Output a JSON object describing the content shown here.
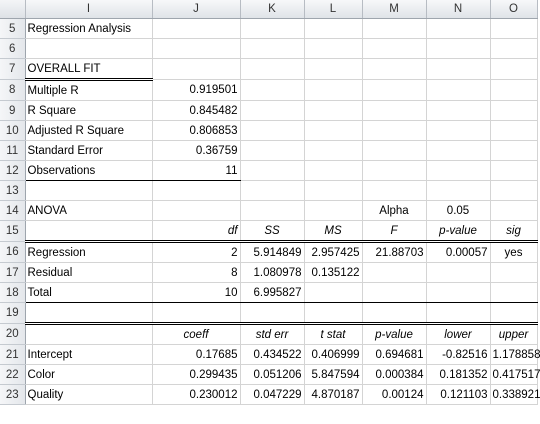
{
  "columns": [
    "I",
    "J",
    "K",
    "L",
    "M",
    "N",
    "O"
  ],
  "rows": [
    {
      "row": "5",
      "cells": [
        "Regression Analysis",
        "",
        "",
        "",
        "",
        "",
        ""
      ]
    },
    {
      "row": "6",
      "cells": [
        "",
        "",
        "",
        "",
        "",
        "",
        ""
      ]
    },
    {
      "row": "7",
      "cells": [
        "OVERALL FIT",
        "",
        "",
        "",
        "",
        "",
        ""
      ]
    },
    {
      "row": "8",
      "cells": [
        "Multiple R",
        "0.919501",
        "",
        "",
        "",
        "",
        ""
      ]
    },
    {
      "row": "9",
      "cells": [
        "R Square",
        "0.845482",
        "",
        "",
        "",
        "",
        ""
      ]
    },
    {
      "row": "10",
      "cells": [
        "Adjusted R Square",
        "0.806853",
        "",
        "",
        "",
        "",
        ""
      ]
    },
    {
      "row": "11",
      "cells": [
        "Standard Error",
        "0.36759",
        "",
        "",
        "",
        "",
        ""
      ]
    },
    {
      "row": "12",
      "cells": [
        "Observations",
        "11",
        "",
        "",
        "",
        "",
        ""
      ]
    },
    {
      "row": "13",
      "cells": [
        "",
        "",
        "",
        "",
        "",
        "",
        ""
      ]
    },
    {
      "row": "14",
      "cells": [
        "ANOVA",
        "",
        "",
        "",
        "Alpha",
        "0.05",
        ""
      ]
    },
    {
      "row": "15",
      "cells": [
        "",
        "df",
        "SS",
        "MS",
        "F",
        "p-value",
        "sig"
      ]
    },
    {
      "row": "16",
      "cells": [
        "Regression",
        "2",
        "5.914849",
        "2.957425",
        "21.88703",
        "0.00057",
        "yes"
      ]
    },
    {
      "row": "17",
      "cells": [
        "Residual",
        "8",
        "1.080978",
        "0.135122",
        "",
        "",
        ""
      ]
    },
    {
      "row": "18",
      "cells": [
        "Total",
        "10",
        "6.995827",
        "",
        "",
        "",
        ""
      ]
    },
    {
      "row": "19",
      "cells": [
        "",
        "",
        "",
        "",
        "",
        "",
        ""
      ]
    },
    {
      "row": "20",
      "cells": [
        "",
        "coeff",
        "std err",
        "t stat",
        "p-value",
        "lower",
        "upper"
      ]
    },
    {
      "row": "21",
      "cells": [
        "Intercept",
        "0.17685",
        "0.434522",
        "0.406999",
        "0.694681",
        "-0.82516",
        "1.178858"
      ]
    },
    {
      "row": "22",
      "cells": [
        "Color",
        "0.299435",
        "0.051206",
        "5.847594",
        "0.000384",
        "0.181352",
        "0.417517"
      ]
    },
    {
      "row": "23",
      "cells": [
        "Quality",
        "0.230012",
        "0.047229",
        "4.870187",
        "0.00124",
        "0.121103",
        "0.338921"
      ]
    }
  ]
}
